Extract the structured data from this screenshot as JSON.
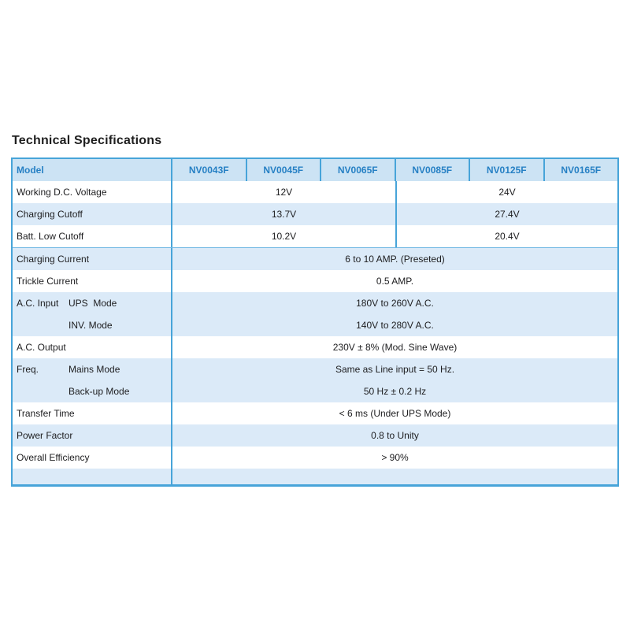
{
  "title": "Technical Specifications",
  "colors": {
    "border": "#47a4d9",
    "header_bg": "#cce3f4",
    "header_text": "#2680c4",
    "row_alt_bg": "#dbeaf8"
  },
  "table": {
    "header": {
      "model_label": "Model",
      "columns": [
        "NV0043F",
        "NV0045F",
        "NV0065F",
        "NV0085F",
        "NV0125F",
        "NV0165F"
      ]
    },
    "voltage_rows": [
      {
        "label": "Working D.C. Voltage",
        "group12": "12V",
        "group24": "24V"
      },
      {
        "label": "Charging Cutoff",
        "group12": "13.7V",
        "group24": "27.4V"
      },
      {
        "label": "Batt. Low Cutoff",
        "group12": "10.2V",
        "group24": "20.4V"
      }
    ],
    "rows": [
      {
        "label": "Charging Current",
        "value": "6 to 10 AMP. (Preseted)"
      },
      {
        "label": "Trickle Current",
        "value": "0.5 AMP."
      },
      {
        "label": "A.C. Input",
        "sub1": "UPS  Mode",
        "value1": "180V to 260V A.C.",
        "sub2": "INV. Mode",
        "value2": "140V to 280V A.C."
      },
      {
        "label": "A.C. Output",
        "value": "230V ± 8% (Mod. Sine Wave)"
      },
      {
        "label": "Freq.",
        "sub1": "Mains Mode",
        "value1": "Same as Line input = 50 Hz.",
        "sub2": "Back-up Mode",
        "value2": "50 Hz ± 0.2 Hz"
      },
      {
        "label": "Transfer Time",
        "value": "< 6 ms (Under UPS Mode)"
      },
      {
        "label": "Power Factor",
        "value": "0.8 to Unity"
      },
      {
        "label": "Overall Efficiency",
        "value": "> 90%"
      }
    ]
  }
}
